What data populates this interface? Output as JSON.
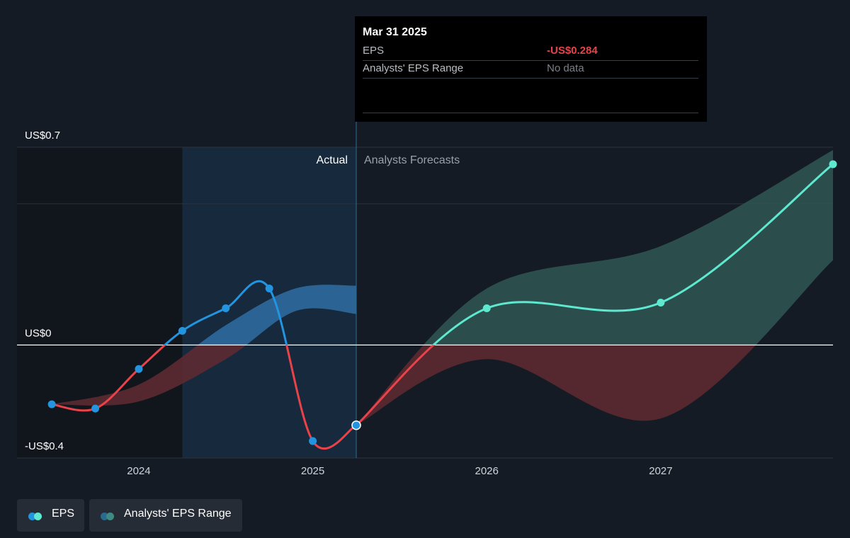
{
  "chart_data": {
    "type": "line",
    "y_ticks": [
      {
        "label": "US$0.7",
        "value": 0.7
      },
      {
        "label": "US$0",
        "value": 0
      },
      {
        "label": "-US$0.4",
        "value": -0.4
      }
    ],
    "ylim": [
      -0.4,
      0.7
    ],
    "x_ticks": [
      {
        "label": "2024",
        "value": 2024.0
      },
      {
        "label": "2025",
        "value": 2025.0
      },
      {
        "label": "2026",
        "value": 2026.0
      },
      {
        "label": "2027",
        "value": 2027.0
      }
    ],
    "xlim": [
      2023.3,
      2027.99
    ],
    "section_labels": {
      "actual": "Actual",
      "forecast": "Analysts Forecasts"
    },
    "divider_x": 2025.25,
    "highlight_start_x": 2024.25,
    "eps_actual": [
      {
        "x": 2023.5,
        "y": -0.21
      },
      {
        "x": 2023.75,
        "y": -0.225
      },
      {
        "x": 2024.0,
        "y": -0.085
      },
      {
        "x": 2024.25,
        "y": 0.05
      },
      {
        "x": 2024.5,
        "y": 0.13
      },
      {
        "x": 2024.75,
        "y": 0.2
      },
      {
        "x": 2025.0,
        "y": -0.34
      },
      {
        "x": 2025.25,
        "y": -0.284
      }
    ],
    "eps_forecast": [
      {
        "x": 2025.25,
        "y": -0.284
      },
      {
        "x": 2026.0,
        "y": 0.13
      },
      {
        "x": 2027.0,
        "y": 0.15
      },
      {
        "x": 2027.99,
        "y": 0.64
      }
    ],
    "range_history": [
      {
        "x": 2023.5,
        "low": -0.21,
        "high": -0.21
      },
      {
        "x": 2024.0,
        "low": -0.2,
        "high": -0.14
      },
      {
        "x": 2024.5,
        "low": -0.05,
        "high": 0.07
      },
      {
        "x": 2024.9,
        "low": 0.12,
        "high": 0.2
      },
      {
        "x": 2025.25,
        "low": 0.11,
        "high": 0.21
      }
    ],
    "range_forecast": [
      {
        "x": 2025.25,
        "low": -0.284,
        "high": -0.284
      },
      {
        "x": 2026.0,
        "low": -0.05,
        "high": 0.2
      },
      {
        "x": 2027.0,
        "low": -0.26,
        "high": 0.35
      },
      {
        "x": 2027.99,
        "low": 0.3,
        "high": 0.69
      }
    ],
    "tooltip": {
      "title": "Mar 31 2025",
      "rows": [
        {
          "label": "EPS",
          "value": "-US$0.284"
        },
        {
          "label": "Analysts' EPS Range",
          "value": "No data"
        }
      ]
    },
    "legend": [
      {
        "name": "EPS",
        "colors": [
          "#2394df",
          "#5ee8d0"
        ]
      },
      {
        "name": "Analysts' EPS Range",
        "colors": [
          "#2a6a8f",
          "#3f8a82"
        ]
      }
    ],
    "colors": {
      "actual_pos": "#2394df",
      "neg": "#e8424a",
      "forecast_pos": "#5ee8d0",
      "range_hist_pos": "#2f6fa3",
      "range_neg": "#5c2a31",
      "range_forecast_pos": "#2f5754"
    }
  }
}
